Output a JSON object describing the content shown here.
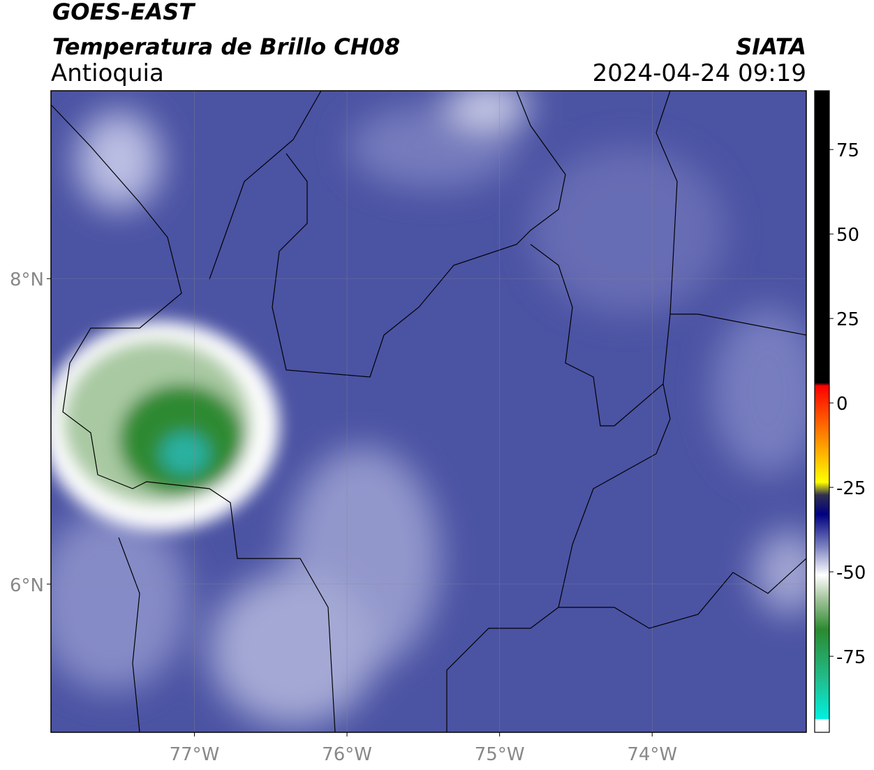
{
  "header": {
    "title": "GOES-EAST",
    "subtitle": "Temperatura de Brillo CH08",
    "region": "Antioquia",
    "source": "SIATA",
    "timestamp": "2024-04-24 09:19"
  },
  "map": {
    "xlim": [
      -77.94,
      -72.99
    ],
    "ylim": [
      5.03,
      9.23
    ],
    "xticks": [
      {
        "value": -77,
        "label": "77°W"
      },
      {
        "value": -76,
        "label": "76°W"
      },
      {
        "value": -75,
        "label": "75°W"
      },
      {
        "value": -74,
        "label": "74°W"
      }
    ],
    "yticks": [
      {
        "value": 8,
        "label": "8°N"
      },
      {
        "value": 6,
        "label": "6°N"
      }
    ],
    "grid": true
  },
  "colorbar": {
    "lim": [
      -97.5,
      92.4
    ],
    "ticks": [
      75,
      50,
      25,
      0,
      -25,
      -50,
      -75
    ]
  }
}
